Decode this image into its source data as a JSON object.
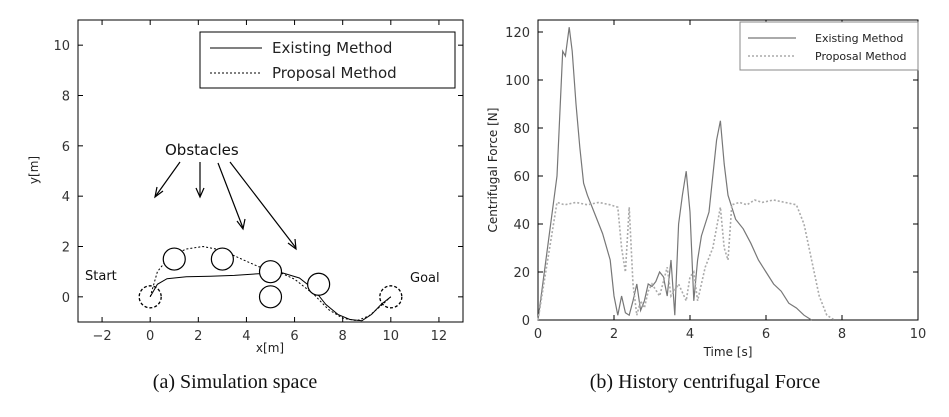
{
  "figure": {
    "caption_a": "(a)  Simulation space",
    "caption_b": "(b)  History centrifugal Force"
  },
  "chart_data": [
    {
      "type": "line",
      "xlabel": "x[m]",
      "ylabel": "y[m]",
      "xlim": [
        -3,
        13
      ],
      "ylim": [
        -1,
        11
      ],
      "xticks": [
        -2,
        0,
        2,
        4,
        6,
        8,
        10,
        12
      ],
      "yticks": [
        0,
        2,
        4,
        6,
        8,
        10
      ],
      "grid": false,
      "legend_position": "top-right",
      "series": [
        {
          "name": "Existing Method",
          "style": "solid",
          "points": [
            [
              0,
              0
            ],
            [
              0.3,
              0.5
            ],
            [
              0.7,
              0.72
            ],
            [
              1.5,
              0.8
            ],
            [
              2.5,
              0.82
            ],
            [
              3.5,
              0.85
            ],
            [
              4.5,
              0.92
            ],
            [
              5.5,
              0.95
            ],
            [
              6.2,
              0.75
            ],
            [
              6.8,
              0.3
            ],
            [
              7.3,
              -0.3
            ],
            [
              7.8,
              -0.7
            ],
            [
              8.3,
              -0.9
            ],
            [
              8.8,
              -0.95
            ],
            [
              9.2,
              -0.7
            ],
            [
              9.6,
              -0.3
            ],
            [
              10,
              0
            ]
          ]
        },
        {
          "name": "Proposal Method",
          "style": "dotted",
          "points": [
            [
              0,
              0
            ],
            [
              0.3,
              1.0
            ],
            [
              0.8,
              1.6
            ],
            [
              1.5,
              1.9
            ],
            [
              2.2,
              2.0
            ],
            [
              3.0,
              1.85
            ],
            [
              3.8,
              1.5
            ],
            [
              4.5,
              1.2
            ],
            [
              5.2,
              1.05
            ],
            [
              6.0,
              0.7
            ],
            [
              6.8,
              0.1
            ],
            [
              7.4,
              -0.5
            ],
            [
              8.0,
              -0.85
            ],
            [
              8.6,
              -0.95
            ],
            [
              9.1,
              -0.75
            ],
            [
              9.6,
              -0.35
            ],
            [
              10,
              0
            ]
          ]
        }
      ],
      "obstacles": [
        [
          1,
          1.5
        ],
        [
          3,
          1.5
        ],
        [
          5,
          1
        ],
        [
          7,
          0.5
        ],
        [
          5,
          0
        ]
      ],
      "start_label": "Start",
      "goal_label": "Goal",
      "obstacles_label": "Obstacles"
    },
    {
      "type": "line",
      "xlabel": "Time [s]",
      "ylabel": "Centrifugal Force [N]",
      "xlim": [
        0,
        10
      ],
      "ylim": [
        0,
        125
      ],
      "xticks": [
        0,
        2,
        4,
        6,
        8,
        10
      ],
      "yticks": [
        0,
        20,
        40,
        60,
        80,
        100,
        120
      ],
      "grid": false,
      "legend_position": "top-right",
      "series": [
        {
          "name": "Existing Method",
          "style": "solid",
          "points": [
            [
              0,
              0
            ],
            [
              0.5,
              60
            ],
            [
              0.65,
              112
            ],
            [
              0.72,
              110
            ],
            [
              0.82,
              122
            ],
            [
              0.9,
              112
            ],
            [
              1.0,
              90
            ],
            [
              1.1,
              72
            ],
            [
              1.2,
              57
            ],
            [
              1.3,
              52
            ],
            [
              1.5,
              44
            ],
            [
              1.7,
              36
            ],
            [
              1.9,
              25
            ],
            [
              2.0,
              10
            ],
            [
              2.1,
              2
            ],
            [
              2.2,
              10
            ],
            [
              2.3,
              3
            ],
            [
              2.4,
              2
            ],
            [
              2.5,
              8
            ],
            [
              2.6,
              15
            ],
            [
              2.7,
              4
            ],
            [
              2.8,
              8
            ],
            [
              2.9,
              15
            ],
            [
              3.0,
              14
            ],
            [
              3.1,
              16
            ],
            [
              3.2,
              20
            ],
            [
              3.3,
              18
            ],
            [
              3.4,
              10
            ],
            [
              3.5,
              25
            ],
            [
              3.6,
              2
            ],
            [
              3.7,
              40
            ],
            [
              3.8,
              52
            ],
            [
              3.9,
              62
            ],
            [
              4.0,
              45
            ],
            [
              4.1,
              8
            ],
            [
              4.2,
              25
            ],
            [
              4.3,
              35
            ],
            [
              4.5,
              45
            ],
            [
              4.7,
              75
            ],
            [
              4.8,
              83
            ],
            [
              4.9,
              65
            ],
            [
              5.0,
              52
            ],
            [
              5.2,
              42
            ],
            [
              5.4,
              38
            ],
            [
              5.6,
              32
            ],
            [
              5.8,
              25
            ],
            [
              6.0,
              20
            ],
            [
              6.2,
              15
            ],
            [
              6.4,
              12
            ],
            [
              6.6,
              7
            ],
            [
              6.8,
              5
            ],
            [
              7.0,
              2
            ],
            [
              7.2,
              0
            ]
          ]
        },
        {
          "name": "Proposal Method",
          "style": "dotted",
          "points": [
            [
              0,
              0
            ],
            [
              0.5,
              49
            ],
            [
              0.7,
              48
            ],
            [
              1.0,
              49
            ],
            [
              1.3,
              48
            ],
            [
              1.6,
              49
            ],
            [
              1.9,
              48
            ],
            [
              2.1,
              47
            ],
            [
              2.2,
              30
            ],
            [
              2.3,
              20
            ],
            [
              2.4,
              47
            ],
            [
              2.5,
              15
            ],
            [
              2.6,
              2
            ],
            [
              2.7,
              8
            ],
            [
              2.8,
              5
            ],
            [
              2.9,
              12
            ],
            [
              3.0,
              15
            ],
            [
              3.2,
              10
            ],
            [
              3.4,
              22
            ],
            [
              3.5,
              10
            ],
            [
              3.7,
              15
            ],
            [
              3.9,
              8
            ],
            [
              4.0,
              18
            ],
            [
              4.1,
              20
            ],
            [
              4.2,
              8
            ],
            [
              4.3,
              15
            ],
            [
              4.4,
              22
            ],
            [
              4.6,
              30
            ],
            [
              4.8,
              47
            ],
            [
              4.9,
              30
            ],
            [
              5.0,
              25
            ],
            [
              5.1,
              48
            ],
            [
              5.3,
              49
            ],
            [
              5.5,
              48
            ],
            [
              5.7,
              50
            ],
            [
              5.9,
              49
            ],
            [
              6.2,
              50
            ],
            [
              6.5,
              49
            ],
            [
              6.8,
              48
            ],
            [
              7.0,
              40
            ],
            [
              7.2,
              25
            ],
            [
              7.4,
              10
            ],
            [
              7.6,
              2
            ],
            [
              7.8,
              0
            ]
          ]
        }
      ]
    }
  ]
}
